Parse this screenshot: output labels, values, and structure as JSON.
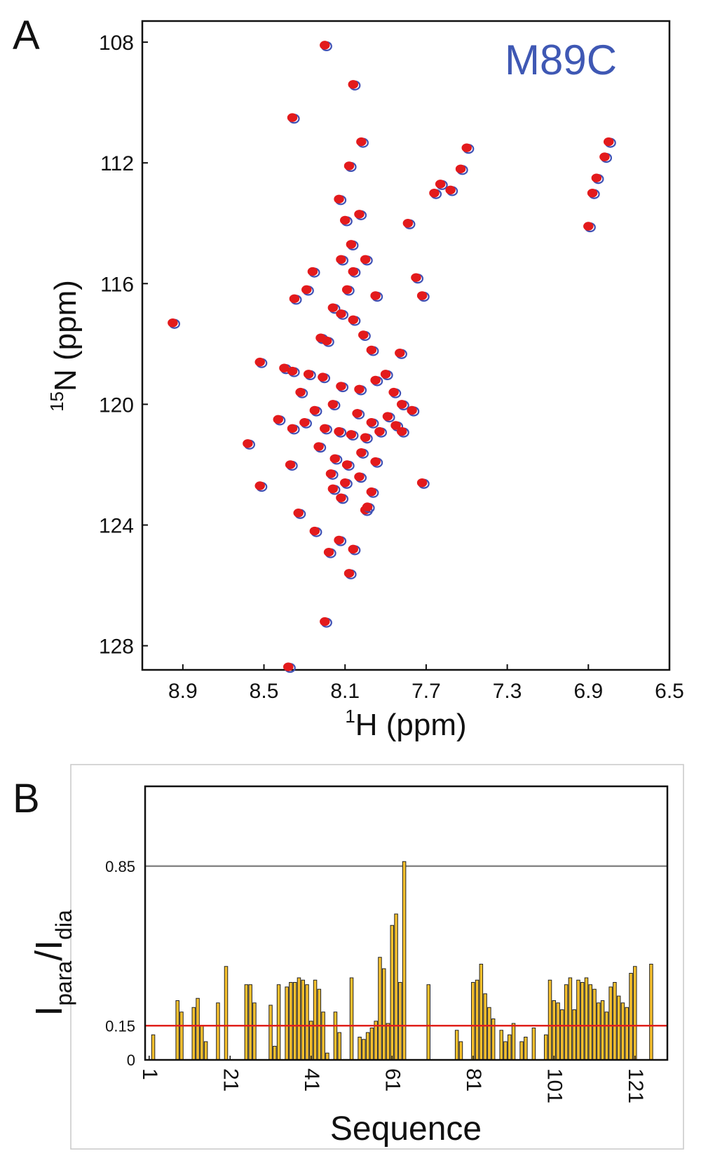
{
  "figure": {
    "panel_a_label": "A",
    "panel_b_label": "B"
  },
  "colors": {
    "peak_red": "#e31a1c",
    "peak_blue": "#3f51b5",
    "mutant_label": "#3f58b4",
    "bar_fill": "#f7c12e",
    "bar_stroke": "#222222",
    "threshold_red": "#e0201b",
    "threshold_gray": "#888888"
  },
  "chart_data": [
    {
      "type": "scatter",
      "annotation": "M89C",
      "xlabel_sup": "1",
      "xlabel_main": "H (ppm)",
      "ylabel_sup": "15",
      "ylabel_main": "N (ppm)",
      "x_reversed": true,
      "y_reversed": true,
      "xlim": [
        9.1,
        6.5
      ],
      "ylim": [
        107.3,
        128.8
      ],
      "xticks": [
        "8.9",
        "8.5",
        "8.1",
        "7.7",
        "7.3",
        "6.9",
        "6.5"
      ],
      "yticks": [
        "108",
        "112",
        "116",
        "120",
        "124",
        "128"
      ],
      "series": [
        {
          "x": [
            8.2,
            8.06,
            8.36,
            8.02,
            8.08,
            7.63,
            7.58,
            7.53,
            7.66,
            7.5,
            6.8,
            6.82,
            6.86,
            6.88,
            6.9,
            7.79,
            8.13,
            8.1,
            8.03,
            8.07,
            8.12,
            8.0,
            8.06,
            8.26,
            8.35,
            8.29,
            7.75,
            7.72,
            8.09,
            7.95,
            8.16,
            8.12,
            8.06,
            8.95,
            8.22,
            8.19,
            8.01,
            7.97,
            8.52,
            8.4,
            8.36,
            8.28,
            8.21,
            7.83,
            8.32,
            8.12,
            8.03,
            7.95,
            7.9,
            7.86,
            8.25,
            8.16,
            8.04,
            7.97,
            7.89,
            7.82,
            8.43,
            8.36,
            8.3,
            8.2,
            8.13,
            8.07,
            8.0,
            7.93,
            7.85,
            7.77,
            8.23,
            8.15,
            8.09,
            8.02,
            7.95,
            7.82,
            8.58,
            8.37,
            8.17,
            8.1,
            8.03,
            7.97,
            8.12,
            8.0,
            7.72,
            8.52,
            8.33,
            8.25,
            8.16,
            8.13,
            7.99,
            8.06,
            8.18,
            8.08,
            8.38,
            8.2
          ],
          "y": [
            108.1,
            109.4,
            110.5,
            111.3,
            112.1,
            112.7,
            112.9,
            112.2,
            113.0,
            111.5,
            111.3,
            111.8,
            112.5,
            113.0,
            114.1,
            114.0,
            113.2,
            113.9,
            113.7,
            114.7,
            115.2,
            115.2,
            115.6,
            115.6,
            116.5,
            116.2,
            115.8,
            116.4,
            116.2,
            116.4,
            116.8,
            117.0,
            117.2,
            117.3,
            117.8,
            117.9,
            117.7,
            118.2,
            118.6,
            118.8,
            118.9,
            119.0,
            119.1,
            118.3,
            119.6,
            119.4,
            119.5,
            119.2,
            119.0,
            119.6,
            120.2,
            120.0,
            120.3,
            120.6,
            120.4,
            120.0,
            120.5,
            120.8,
            120.6,
            120.8,
            120.9,
            121.0,
            121.1,
            120.9,
            120.7,
            120.2,
            121.4,
            121.8,
            122.0,
            121.6,
            121.9,
            120.9,
            121.3,
            122.0,
            122.3,
            122.6,
            122.4,
            122.9,
            123.1,
            123.5,
            122.6,
            122.7,
            123.6,
            124.2,
            122.8,
            124.5,
            123.4,
            124.8,
            124.9,
            125.6,
            128.7,
            127.2
          ]
        }
      ]
    },
    {
      "type": "bar",
      "xlabel": "Sequence",
      "ylabel_main_1": "I",
      "ylabel_sub_1": "para",
      "ylabel_slash": "/",
      "ylabel_main_2": "I",
      "ylabel_sub_2": "dia",
      "xlim": [
        0,
        129
      ],
      "ylim": [
        0,
        1.2
      ],
      "xticks": [
        "1",
        "21",
        "41",
        "61",
        "81",
        "101",
        "121"
      ],
      "yticks": [
        "0",
        "0.15",
        "0.85"
      ],
      "thresholds": [
        0.15,
        0.85
      ],
      "x": [
        2,
        8,
        9,
        12,
        13,
        14,
        15,
        18,
        20,
        25,
        26,
        27,
        31,
        32,
        33,
        35,
        36,
        37,
        38,
        39,
        40,
        41,
        42,
        43,
        44,
        45,
        47,
        48,
        51,
        53,
        54,
        55,
        56,
        57,
        58,
        59,
        60,
        61,
        62,
        63,
        64,
        70,
        77,
        78,
        81,
        82,
        83,
        84,
        85,
        86,
        88,
        89,
        90,
        91,
        93,
        94,
        96,
        99,
        100,
        101,
        102,
        103,
        104,
        105,
        106,
        107,
        108,
        109,
        110,
        111,
        112,
        113,
        114,
        115,
        116,
        117,
        118,
        119,
        120,
        121,
        125
      ],
      "values": [
        0.11,
        0.26,
        0.21,
        0.23,
        0.27,
        0.15,
        0.08,
        0.25,
        0.41,
        0.33,
        0.33,
        0.25,
        0.24,
        0.06,
        0.33,
        0.32,
        0.34,
        0.34,
        0.36,
        0.35,
        0.33,
        0.17,
        0.35,
        0.31,
        0.21,
        0.03,
        0.21,
        0.12,
        0.36,
        0.1,
        0.09,
        0.12,
        0.14,
        0.17,
        0.45,
        0.4,
        0.16,
        0.59,
        0.64,
        0.34,
        0.87,
        0.33,
        0.13,
        0.08,
        0.34,
        0.35,
        0.42,
        0.29,
        0.23,
        0.18,
        0.13,
        0.08,
        0.11,
        0.16,
        0.08,
        0.1,
        0.14,
        0.11,
        0.35,
        0.26,
        0.25,
        0.22,
        0.33,
        0.36,
        0.22,
        0.35,
        0.34,
        0.36,
        0.33,
        0.31,
        0.25,
        0.26,
        0.21,
        0.32,
        0.34,
        0.28,
        0.25,
        0.23,
        0.38,
        0.41,
        0.42
      ]
    }
  ]
}
